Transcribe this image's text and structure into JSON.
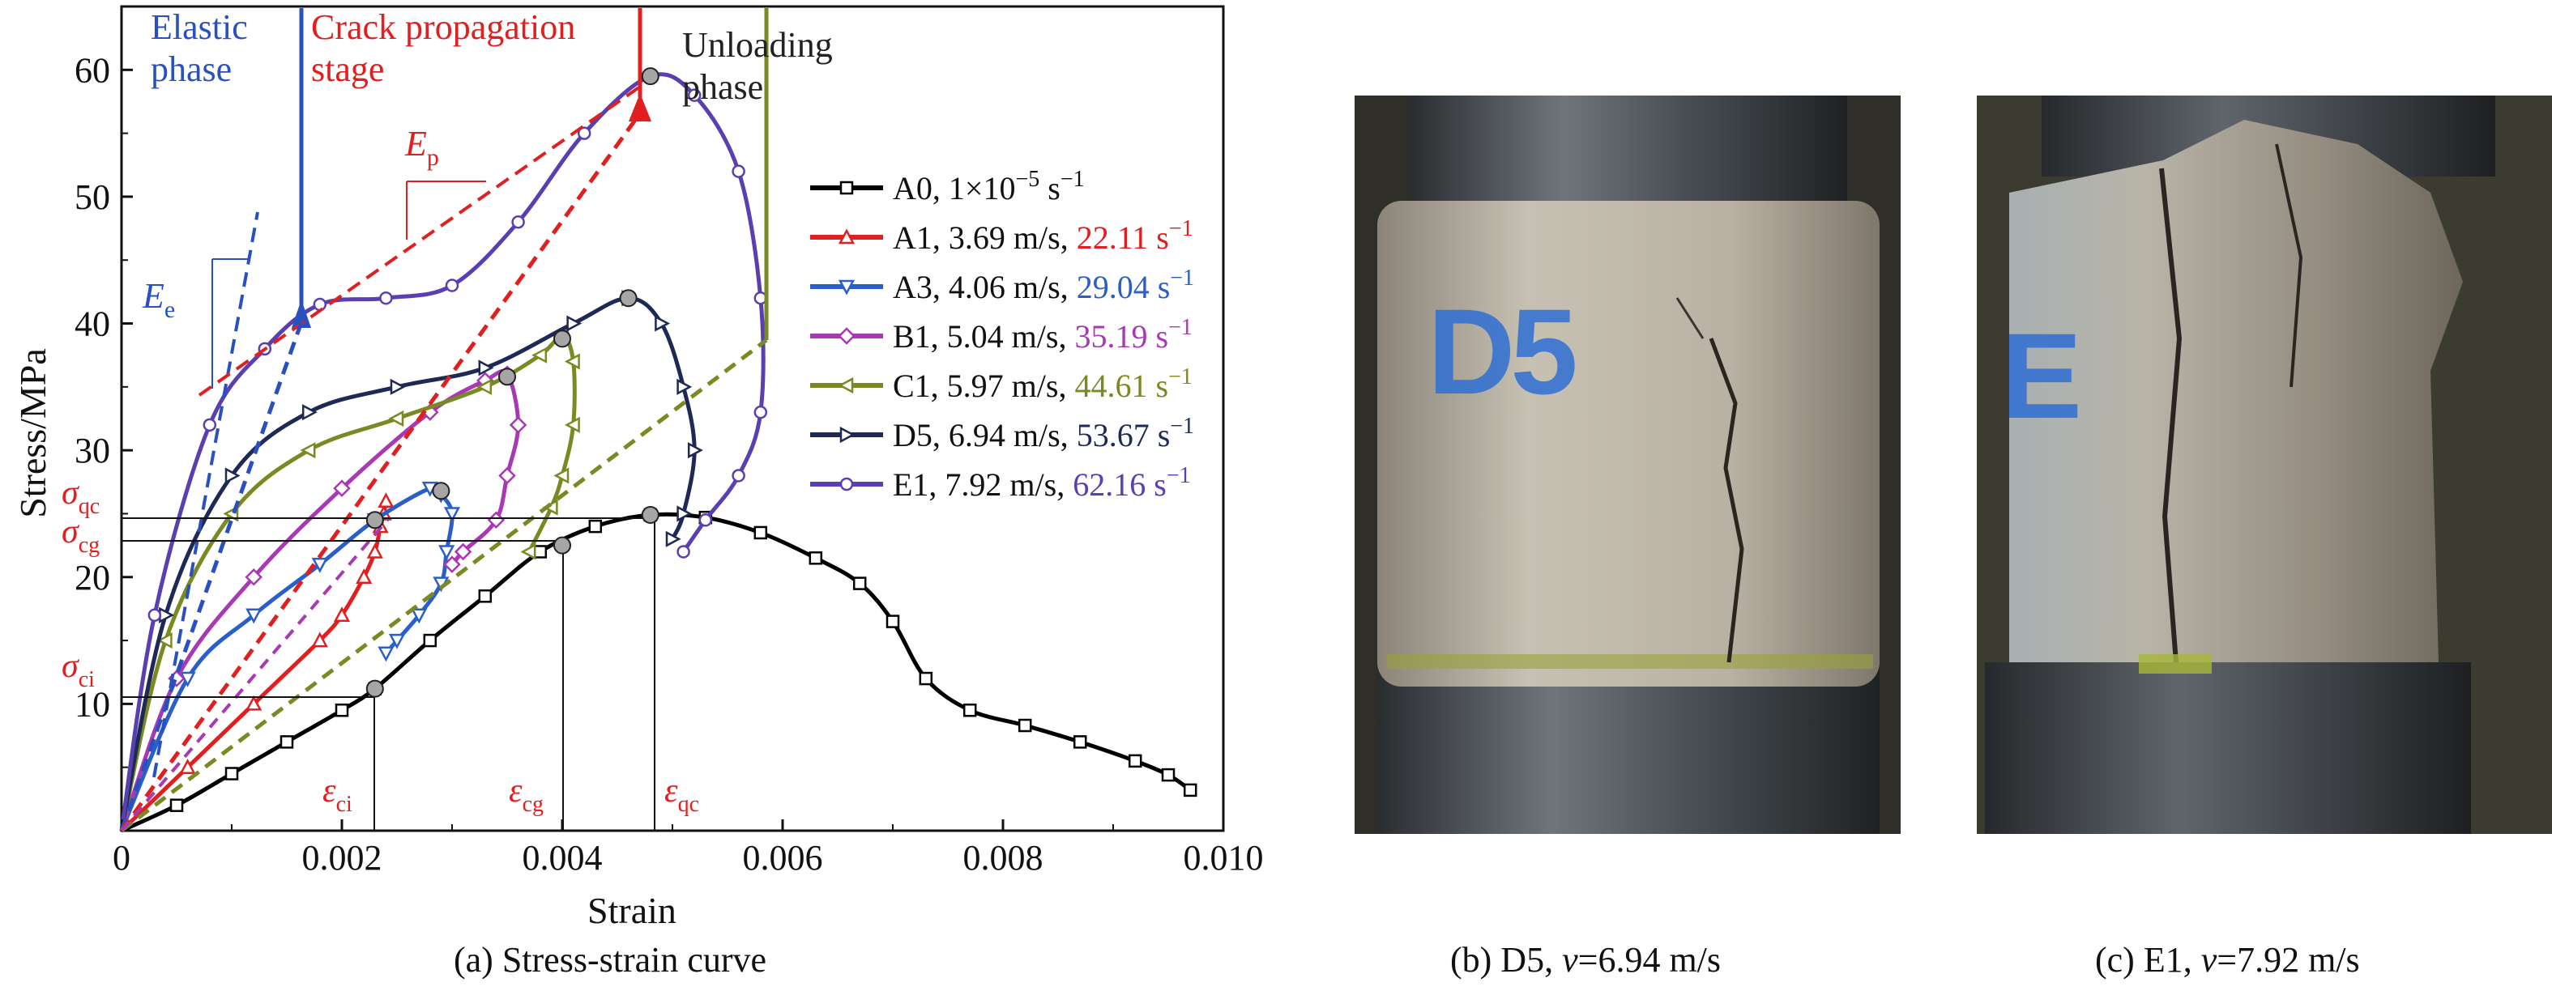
{
  "panel_a": {
    "caption": "(a) Stress-strain curve",
    "phase_labels": {
      "elastic_1": "Elastic",
      "elastic_2": "phase",
      "crack_1": "Crack propagation",
      "crack_2": "stage",
      "unload_1": "Unloading",
      "unload_2": "phase"
    },
    "annotations": {
      "Ep": "E",
      "Ep_sub": "p",
      "Ee": "E",
      "Ee_sub": "e",
      "sigma": "σ",
      "eps": "ε",
      "qc": "qc",
      "cg": "cg",
      "ci": "ci"
    },
    "legend": [
      {
        "prefix": "A0, 1×10",
        "sup": "−5",
        "unit": " s",
        "unit_sup": "−1",
        "rate": ""
      },
      {
        "prefix": "A1, 3.69 m/s, ",
        "rate": "22.11 s",
        "rate_sup": "−1"
      },
      {
        "prefix": "A3, 4.06 m/s, ",
        "rate": "29.04 s",
        "rate_sup": "−1"
      },
      {
        "prefix": "B1, 5.04 m/s, ",
        "rate": "35.19 s",
        "rate_sup": "−1"
      },
      {
        "prefix": "C1, 5.97 m/s, ",
        "rate": "44.61 s",
        "rate_sup": "−1"
      },
      {
        "prefix": "D5, 6.94 m/s, ",
        "rate": "53.67 s",
        "rate_sup": "−1"
      },
      {
        "prefix": "E1, 7.92 m/s, ",
        "rate": "62.16 s",
        "rate_sup": "−1"
      }
    ]
  },
  "chart_data": {
    "type": "line",
    "xlabel": "Strain",
    "ylabel": "Stress/MPa",
    "xlim": [
      0,
      0.01
    ],
    "ylim": [
      0,
      65
    ],
    "xticks": [
      0,
      0.002,
      0.004,
      0.006,
      0.008,
      0.01
    ],
    "xtick_labels": [
      "0",
      "0.002",
      "0.004",
      "0.006",
      "0.008",
      "0.010"
    ],
    "yticks": [
      10,
      20,
      30,
      40,
      50,
      60
    ],
    "ytick_labels": [
      "10",
      "20",
      "30",
      "40",
      "50",
      "60"
    ],
    "grid": false,
    "legend_position": "right",
    "series": [
      {
        "name": "A0",
        "color": "#000000",
        "marker": "square",
        "x": [
          0,
          0.0005,
          0.001,
          0.0015,
          0.002,
          0.0023,
          0.0028,
          0.0033,
          0.0038,
          0.0043,
          0.0048,
          0.0053,
          0.0058,
          0.0063,
          0.0067,
          0.007,
          0.0073,
          0.0077,
          0.0082,
          0.0087,
          0.0092,
          0.0095,
          0.0097
        ],
        "y": [
          0,
          2,
          4.5,
          7,
          9.5,
          11.2,
          15,
          18.5,
          22,
          24,
          24.9,
          24.7,
          23.5,
          21.5,
          19.5,
          16.5,
          12,
          9.5,
          8.3,
          7,
          5.5,
          4.4,
          3.2
        ]
      },
      {
        "name": "A1",
        "color": "#e02020",
        "marker": "triangle-up",
        "x": [
          0,
          0.0006,
          0.0012,
          0.0018,
          0.002,
          0.0022,
          0.0023,
          0.00235,
          0.00238,
          0.0024
        ],
        "y": [
          0,
          5,
          10,
          15,
          17,
          20,
          22,
          24,
          25,
          26
        ]
      },
      {
        "name": "A3",
        "color": "#2a5fc8",
        "marker": "triangle-down",
        "x": [
          0,
          0.0006,
          0.0012,
          0.0018,
          0.0023,
          0.0028,
          0.0029,
          0.003,
          0.00295,
          0.0029,
          0.0027,
          0.0025,
          0.0024
        ],
        "y": [
          0,
          12,
          17,
          21,
          24.5,
          27,
          26.5,
          25,
          22,
          19.5,
          17,
          15,
          14
        ]
      },
      {
        "name": "B1",
        "color": "#a838b4",
        "marker": "diamond",
        "x": [
          0,
          0.0005,
          0.0012,
          0.002,
          0.0028,
          0.0033,
          0.0035,
          0.0036,
          0.0035,
          0.0034,
          0.0031,
          0.003
        ],
        "y": [
          0,
          12,
          20,
          27,
          33,
          35.5,
          36,
          32,
          28,
          24.5,
          22,
          21
        ]
      },
      {
        "name": "C1",
        "color": "#7a8a22",
        "marker": "triangle-left",
        "x": [
          0,
          0.0004,
          0.001,
          0.0017,
          0.0025,
          0.0033,
          0.0038,
          0.004,
          0.0041,
          0.0041,
          0.004,
          0.0039,
          0.0037
        ],
        "y": [
          0,
          15,
          25,
          30,
          32.5,
          35,
          37.5,
          39,
          37,
          32,
          28,
          25.5,
          22
        ]
      },
      {
        "name": "D5",
        "color": "#1e2a55",
        "marker": "triangle-right",
        "x": [
          0,
          0.0004,
          0.001,
          0.0017,
          0.0025,
          0.0033,
          0.0041,
          0.0046,
          0.0049,
          0.0051,
          0.0052,
          0.0051,
          0.005
        ],
        "y": [
          0,
          17,
          28,
          33,
          35,
          36.5,
          40,
          42,
          40,
          35,
          30,
          25,
          23
        ]
      },
      {
        "name": "E1",
        "color": "#5a3fb0",
        "marker": "circle",
        "x": [
          0,
          0.0003,
          0.0008,
          0.0013,
          0.0018,
          0.0024,
          0.003,
          0.0036,
          0.0042,
          0.0048,
          0.0052,
          0.0056,
          0.0058,
          0.0058,
          0.0056,
          0.0053,
          0.0051
        ],
        "y": [
          0,
          17,
          32,
          38,
          41.5,
          42,
          43,
          48,
          55,
          59.5,
          58,
          52,
          42,
          33,
          28,
          24.5,
          22
        ]
      }
    ],
    "markers": [
      {
        "x": 0.0023,
        "y": 11.2
      },
      {
        "x": 0.004,
        "y": 22.5
      },
      {
        "x": 0.0048,
        "y": 24.9
      },
      {
        "x": 0.0023,
        "y": 24.5
      },
      {
        "x": 0.0029,
        "y": 26.8
      },
      {
        "x": 0.0035,
        "y": 35.8
      },
      {
        "x": 0.004,
        "y": 38.8
      },
      {
        "x": 0.0046,
        "y": 42
      },
      {
        "x": 0.0048,
        "y": 59.5
      }
    ]
  },
  "panel_b": {
    "caption_prefix": "(b) D5, ",
    "caption_var": "v",
    "caption_suffix": "=6.94 m/s",
    "label_text": "D5"
  },
  "panel_c": {
    "caption_prefix": "(c) E1, ",
    "caption_var": "v",
    "caption_suffix": "=7.92 m/s",
    "label_text": "E"
  }
}
